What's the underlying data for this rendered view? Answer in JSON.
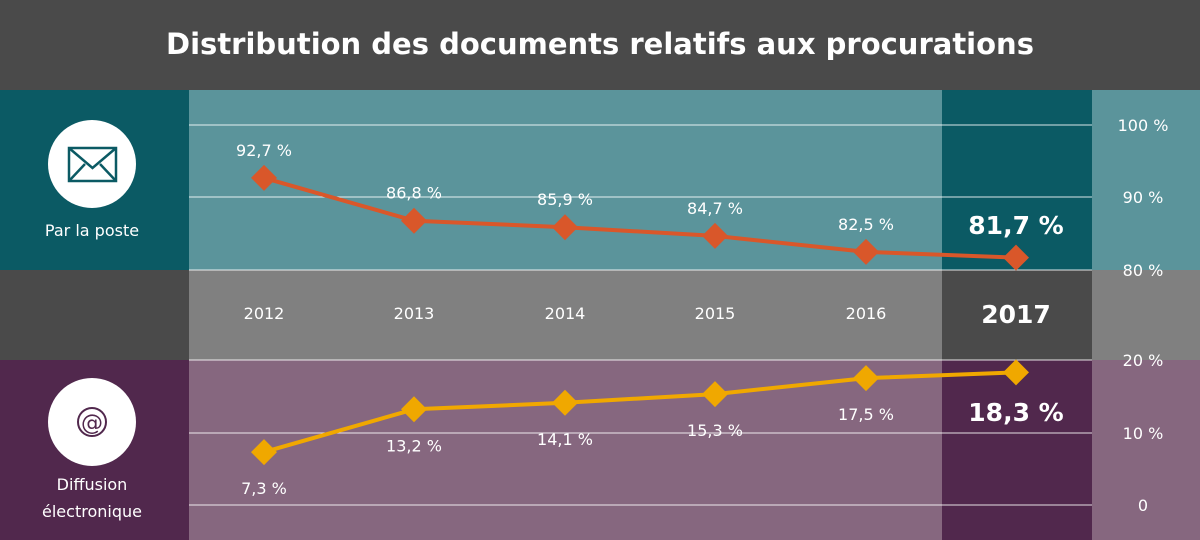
{
  "title": "Distribution des documents relatifs aux procurations",
  "colors": {
    "header_bg": "#4a4a4a",
    "top_band": "#5b949b",
    "top_side": "#0b5a64",
    "middle_band": "#808080",
    "middle_side": "#4a4a4a",
    "bottom_band": "#86677f",
    "bottom_side": "#51284d",
    "orange_series": "#d9572a",
    "yellow_series": "#f0a800"
  },
  "mail_panel": {
    "label": "Par la poste",
    "icon": "envelope-icon"
  },
  "electronic_panel": {
    "label_line1": "Diffusion",
    "label_line2": "électronique",
    "icon": "at-sign-icon"
  },
  "chart_data": [
    {
      "type": "line",
      "title": "",
      "categories": [
        "2012",
        "2013",
        "2014",
        "2015",
        "2016",
        "2017"
      ],
      "series": [
        {
          "name": "Par la poste",
          "values": [
            92.7,
            86.8,
            85.9,
            84.7,
            82.5,
            81.7
          ],
          "labels": [
            "92,7 %",
            "86,8 %",
            "85,9 %",
            "84,7 %",
            "82,5 %",
            "81,7 %"
          ]
        }
      ],
      "ylim": [
        80,
        100
      ],
      "y_ticks": [
        "100 %",
        "90 %",
        "80 %"
      ],
      "grid": true,
      "highlight": "2017"
    },
    {
      "type": "line",
      "title": "",
      "categories": [
        "2012",
        "2013",
        "2014",
        "2015",
        "2016",
        "2017"
      ],
      "series": [
        {
          "name": "Diffusion électronique",
          "values": [
            7.3,
            13.2,
            14.1,
            15.3,
            17.5,
            18.3
          ],
          "labels": [
            "7,3 %",
            "13,2 %",
            "14,1 %",
            "15,3 %",
            "17,5 %",
            "18,3 %"
          ]
        }
      ],
      "ylim": [
        0,
        20
      ],
      "y_ticks": [
        "20 %",
        "10 %",
        "0"
      ],
      "grid": true,
      "highlight": "2017"
    }
  ]
}
